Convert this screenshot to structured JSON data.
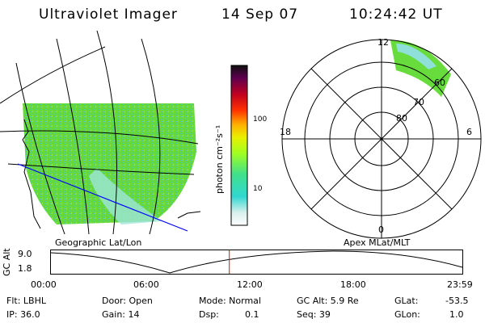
{
  "header": {
    "instrument": "Ultraviolet Imager",
    "date": "14 Sep 07",
    "time": "10:24:42 UT"
  },
  "colorbar": {
    "label": "photon cm⁻²s⁻¹",
    "ticks": [
      "100",
      "10"
    ]
  },
  "left_panel": {
    "caption": "Geographic Lat/Lon"
  },
  "polar_panel": {
    "caption": "Apex MLat/MLT",
    "hours": {
      "top": "12",
      "left": "18",
      "right": "6",
      "bottom": "0"
    },
    "lat_labels": [
      "60",
      "70",
      "80"
    ]
  },
  "orbit": {
    "ylabel": "GC Alt",
    "yticks": [
      "9.0",
      "1.8"
    ],
    "xticks": [
      "00:00",
      "06:00",
      "12:00",
      "18:00",
      "23:59"
    ],
    "current_time_fraction": 0.4336
  },
  "info": {
    "filter": "Flt: LBHL",
    "ip": "IP: 36.0",
    "door": "Door: Open",
    "gain": "Gain: 14",
    "mode": "Mode: Normal",
    "dsp": "Dsp:",
    "dsp_value": "0.1",
    "gc_alt": "GC Alt: 5.9 Re",
    "seq": "Seq: 39",
    "glat": "GLat:",
    "glat_value": "-53.5",
    "glon": "GLon:",
    "glon_value": "1.0"
  },
  "colors": {
    "grid": "#000000",
    "track": "#0000ff",
    "time_marker": "#ff0000",
    "aurora_green": "#6edc3a",
    "aurora_cyan": "#4fd8c8"
  }
}
